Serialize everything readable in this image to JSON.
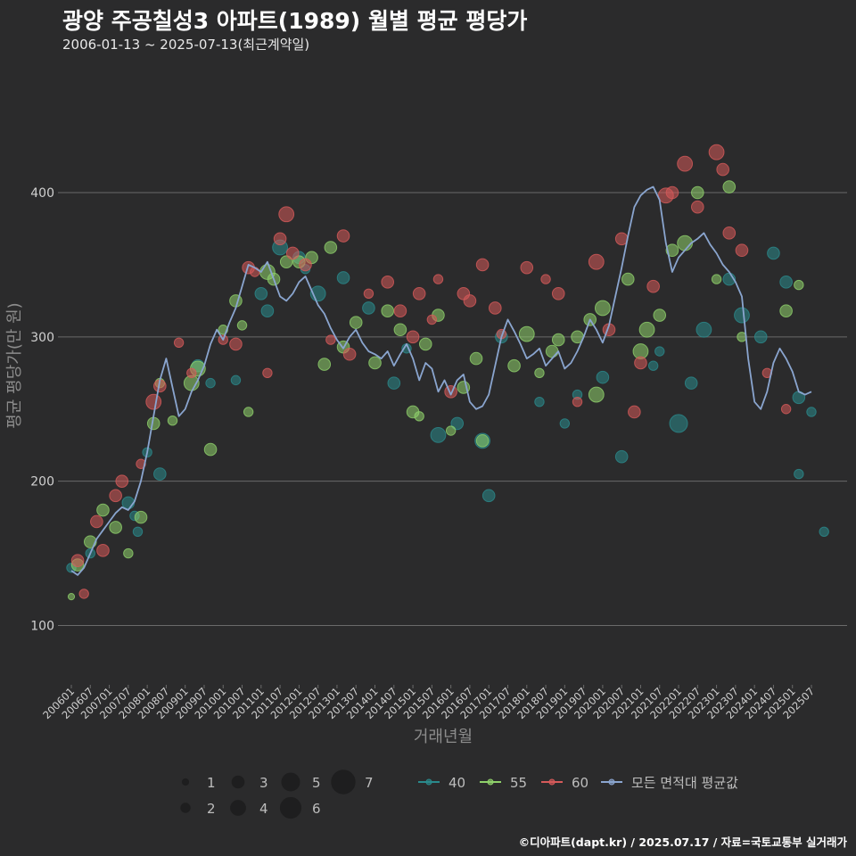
{
  "header": {
    "title": "광양 주공칠성3 아파트(1989) 월별 평균 평당가",
    "subtitle": "2006-01-13 ~ 2025-07-13(최근계약일)"
  },
  "footer": {
    "credit": "©디아파트(dapt.kr) / 2025.07.17 / 자료=국토교통부 실거래가"
  },
  "colors": {
    "background": "#2b2b2c",
    "grid": "#6a6a6a",
    "area40": "#2a8a8c",
    "area55": "#8fd16b",
    "area60": "#d65a5a",
    "avg_line": "#8aa5cf"
  },
  "chart_data": {
    "type": "scatter",
    "title": "광양 주공칠성3 아파트(1989) 월별 평균 평당가",
    "xlabel": "거래년월",
    "ylabel": "평균 평당가(만 원)",
    "ylim": [
      60,
      480
    ],
    "yticks": [
      100,
      200,
      300,
      400
    ],
    "xticks": [
      "200601",
      "200607",
      "200701",
      "200707",
      "200801",
      "200807",
      "200901",
      "200907",
      "201001",
      "201007",
      "201101",
      "201107",
      "201201",
      "201207",
      "201301",
      "201307",
      "201401",
      "201407",
      "201501",
      "201507",
      "201601",
      "201607",
      "201701",
      "201707",
      "201801",
      "201807",
      "201901",
      "201907",
      "202001",
      "202007",
      "202101",
      "202107",
      "202201",
      "202207",
      "202301",
      "202307",
      "202401",
      "202407",
      "202501",
      "202507"
    ],
    "size_legend": {
      "title": "",
      "values": [
        1,
        2,
        3,
        4,
        5,
        6,
        7
      ]
    },
    "series_legend": [
      {
        "key": "area40",
        "label": "40"
      },
      {
        "key": "area55",
        "label": "55"
      },
      {
        "key": "area60",
        "label": "60"
      },
      {
        "key": "avg_line",
        "label": "모든 면적대 평균값"
      }
    ],
    "avg_series": {
      "name": "모든 면적대 평균값",
      "x": [
        0,
        2,
        4,
        6,
        8,
        10,
        12,
        14,
        16,
        18,
        20,
        22,
        24,
        26,
        28,
        30,
        32,
        34,
        36,
        38,
        40,
        42,
        44,
        46,
        48,
        50,
        52,
        54,
        56,
        58,
        60,
        62,
        64,
        66,
        68,
        70,
        72,
        74,
        76,
        78,
        80,
        82,
        84,
        86,
        88,
        90,
        92,
        94,
        96,
        98,
        100,
        102,
        104,
        106,
        108,
        110,
        112,
        114,
        116,
        118,
        120,
        122,
        124,
        126,
        128,
        130,
        132,
        134,
        136,
        138,
        140,
        142,
        144,
        146,
        148,
        150,
        152,
        154,
        156,
        158,
        160,
        162,
        164,
        166,
        168,
        170,
        172,
        174,
        176,
        178,
        180,
        182,
        184,
        186,
        188,
        190,
        192,
        194,
        196,
        198,
        200,
        202,
        204,
        206,
        208,
        210,
        212,
        214,
        216,
        218,
        220,
        222,
        224,
        226,
        228,
        230,
        232,
        234
      ],
      "values": [
        138,
        135,
        140,
        150,
        160,
        166,
        172,
        178,
        182,
        180,
        186,
        200,
        220,
        245,
        270,
        285,
        265,
        245,
        250,
        262,
        270,
        280,
        295,
        305,
        298,
        310,
        320,
        335,
        350,
        348,
        345,
        352,
        340,
        328,
        325,
        330,
        338,
        342,
        332,
        322,
        316,
        306,
        298,
        292,
        300,
        305,
        296,
        290,
        288,
        285,
        290,
        280,
        288,
        295,
        285,
        270,
        282,
        278,
        262,
        270,
        260,
        270,
        274,
        255,
        250,
        252,
        260,
        280,
        300,
        312,
        304,
        295,
        285,
        288,
        292,
        280,
        285,
        290,
        278,
        282,
        290,
        300,
        312,
        305,
        296,
        308,
        328,
        348,
        370,
        390,
        398,
        402,
        404,
        395,
        365,
        345,
        355,
        360,
        365,
        368,
        372,
        364,
        358,
        350,
        345,
        338,
        328,
        285,
        255,
        250,
        262,
        282,
        292,
        285,
        276,
        262,
        260,
        262
      ]
    },
    "points": {
      "area40": [
        [
          0,
          140,
          2
        ],
        [
          6,
          150,
          2
        ],
        [
          18,
          185,
          3
        ],
        [
          20,
          176,
          2
        ],
        [
          21,
          165,
          2
        ],
        [
          24,
          220,
          2
        ],
        [
          28,
          205,
          3
        ],
        [
          40,
          280,
          3
        ],
        [
          44,
          268,
          2
        ],
        [
          52,
          270,
          2
        ],
        [
          60,
          330,
          3
        ],
        [
          62,
          318,
          3
        ],
        [
          66,
          362,
          4
        ],
        [
          72,
          355,
          3
        ],
        [
          74,
          347,
          2
        ],
        [
          78,
          330,
          4
        ],
        [
          86,
          341,
          3
        ],
        [
          94,
          320,
          3
        ],
        [
          102,
          268,
          3
        ],
        [
          106,
          292,
          2
        ],
        [
          116,
          232,
          4
        ],
        [
          122,
          240,
          3
        ],
        [
          130,
          228,
          4
        ],
        [
          132,
          190,
          3
        ],
        [
          136,
          300,
          3
        ],
        [
          148,
          255,
          2
        ],
        [
          156,
          240,
          2
        ],
        [
          160,
          260,
          2
        ],
        [
          168,
          272,
          3
        ],
        [
          174,
          217,
          3
        ],
        [
          184,
          280,
          2
        ],
        [
          186,
          290,
          2
        ],
        [
          192,
          240,
          5
        ],
        [
          196,
          268,
          3
        ],
        [
          200,
          305,
          4
        ],
        [
          208,
          340,
          3
        ],
        [
          212,
          315,
          4
        ],
        [
          218,
          300,
          3
        ],
        [
          222,
          358,
          3
        ],
        [
          226,
          338,
          3
        ],
        [
          230,
          258,
          3
        ],
        [
          234,
          248,
          2
        ],
        [
          238,
          165,
          2
        ],
        [
          230,
          205,
          2
        ]
      ],
      "area55": [
        [
          0,
          120,
          1
        ],
        [
          2,
          142,
          3
        ],
        [
          6,
          158,
          3
        ],
        [
          10,
          180,
          3
        ],
        [
          14,
          168,
          3
        ],
        [
          18,
          150,
          2
        ],
        [
          22,
          175,
          3
        ],
        [
          26,
          240,
          3
        ],
        [
          28,
          268,
          2
        ],
        [
          32,
          242,
          2
        ],
        [
          38,
          268,
          4
        ],
        [
          40,
          278,
          4
        ],
        [
          44,
          222,
          3
        ],
        [
          48,
          305,
          2
        ],
        [
          52,
          325,
          3
        ],
        [
          54,
          308,
          2
        ],
        [
          56,
          248,
          2
        ],
        [
          62,
          345,
          4
        ],
        [
          64,
          340,
          3
        ],
        [
          68,
          352,
          3
        ],
        [
          72,
          352,
          3
        ],
        [
          76,
          355,
          3
        ],
        [
          80,
          281,
          3
        ],
        [
          82,
          362,
          3
        ],
        [
          86,
          293,
          3
        ],
        [
          90,
          310,
          3
        ],
        [
          96,
          282,
          3
        ],
        [
          100,
          318,
          3
        ],
        [
          104,
          305,
          3
        ],
        [
          108,
          248,
          3
        ],
        [
          110,
          245,
          2
        ],
        [
          112,
          295,
          3
        ],
        [
          116,
          315,
          3
        ],
        [
          120,
          235,
          2
        ],
        [
          124,
          265,
          3
        ],
        [
          128,
          285,
          3
        ],
        [
          130,
          228,
          3
        ],
        [
          140,
          280,
          3
        ],
        [
          144,
          302,
          4
        ],
        [
          148,
          275,
          2
        ],
        [
          152,
          290,
          3
        ],
        [
          154,
          298,
          3
        ],
        [
          160,
          300,
          3
        ],
        [
          164,
          312,
          3
        ],
        [
          166,
          260,
          4
        ],
        [
          168,
          320,
          4
        ],
        [
          176,
          340,
          3
        ],
        [
          180,
          290,
          4
        ],
        [
          182,
          305,
          4
        ],
        [
          186,
          315,
          3
        ],
        [
          190,
          360,
          3
        ],
        [
          194,
          365,
          4
        ],
        [
          198,
          400,
          3
        ],
        [
          204,
          340,
          2
        ],
        [
          208,
          404,
          3
        ],
        [
          212,
          300,
          2
        ],
        [
          226,
          318,
          3
        ],
        [
          230,
          336,
          2
        ]
      ],
      "area60": [
        [
          2,
          145,
          3
        ],
        [
          4,
          122,
          2
        ],
        [
          8,
          172,
          3
        ],
        [
          10,
          152,
          3
        ],
        [
          14,
          190,
          3
        ],
        [
          16,
          200,
          3
        ],
        [
          22,
          212,
          2
        ],
        [
          26,
          255,
          4
        ],
        [
          28,
          266,
          3
        ],
        [
          34,
          296,
          2
        ],
        [
          38,
          275,
          2
        ],
        [
          48,
          298,
          2
        ],
        [
          52,
          295,
          3
        ],
        [
          56,
          348,
          3
        ],
        [
          58,
          345,
          2
        ],
        [
          62,
          275,
          2
        ],
        [
          66,
          368,
          3
        ],
        [
          68,
          385,
          4
        ],
        [
          70,
          358,
          3
        ],
        [
          74,
          350,
          3
        ],
        [
          82,
          298,
          2
        ],
        [
          86,
          370,
          3
        ],
        [
          88,
          288,
          3
        ],
        [
          94,
          330,
          2
        ],
        [
          100,
          338,
          3
        ],
        [
          104,
          318,
          3
        ],
        [
          108,
          300,
          3
        ],
        [
          110,
          330,
          3
        ],
        [
          114,
          312,
          2
        ],
        [
          116,
          340,
          2
        ],
        [
          120,
          262,
          3
        ],
        [
          124,
          330,
          3
        ],
        [
          126,
          325,
          3
        ],
        [
          130,
          350,
          3
        ],
        [
          134,
          320,
          3
        ],
        [
          136,
          302,
          2
        ],
        [
          144,
          348,
          3
        ],
        [
          150,
          340,
          2
        ],
        [
          154,
          330,
          3
        ],
        [
          160,
          255,
          2
        ],
        [
          166,
          352,
          4
        ],
        [
          170,
          305,
          3
        ],
        [
          174,
          368,
          3
        ],
        [
          178,
          248,
          3
        ],
        [
          180,
          282,
          3
        ],
        [
          184,
          335,
          3
        ],
        [
          188,
          398,
          4
        ],
        [
          190,
          400,
          3
        ],
        [
          194,
          420,
          4
        ],
        [
          198,
          390,
          3
        ],
        [
          204,
          428,
          4
        ],
        [
          206,
          416,
          3
        ],
        [
          208,
          372,
          3
        ],
        [
          212,
          360,
          3
        ],
        [
          220,
          275,
          2
        ],
        [
          226,
          250,
          2
        ]
      ]
    }
  }
}
